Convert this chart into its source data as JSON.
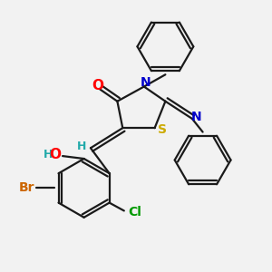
{
  "bg_color": "#f2f2f2",
  "bond_color": "#1a1a1a",
  "atom_colors": {
    "O": "#ff0000",
    "N": "#0000cc",
    "S": "#ccaa00",
    "Br": "#cc6600",
    "Cl": "#009900",
    "H": "#22aaaa",
    "HO": "#ff0000"
  },
  "lw": 1.6,
  "font_size": 10,
  "xlim": [
    0,
    10
  ],
  "ylim": [
    0,
    10
  ]
}
